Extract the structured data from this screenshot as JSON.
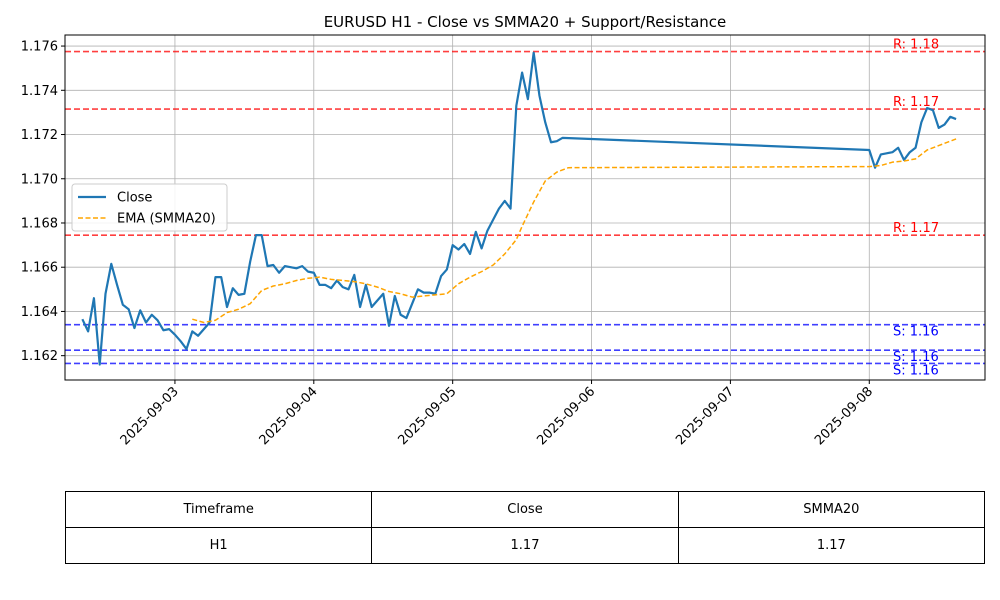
{
  "chart_data": {
    "type": "line",
    "title": "EURUSD H1 - Close vs SMMA20 + Support/Resistance",
    "xlabel": "",
    "ylabel": "",
    "xlim": [
      "2025-09-02 05:00",
      "2025-09-08 20:00"
    ],
    "ylim": [
      1.1609,
      1.1765
    ],
    "grid": true,
    "legend_position": "center-left",
    "x_ticks": [
      "2025-09-03",
      "2025-09-04",
      "2025-09-05",
      "2025-09-06",
      "2025-09-07",
      "2025-09-08"
    ],
    "y_ticks": [
      "1.162",
      "1.164",
      "1.166",
      "1.168",
      "1.170",
      "1.172",
      "1.174",
      "1.176"
    ],
    "series": [
      {
        "name": "Close",
        "color": "#1f77b4",
        "style": "solid",
        "points": [
          [
            "2025-09-02 08:00",
            1.16365
          ],
          [
            "2025-09-02 09:00",
            1.1631
          ],
          [
            "2025-09-02 10:00",
            1.1646
          ],
          [
            "2025-09-02 11:00",
            1.1616
          ],
          [
            "2025-09-02 12:00",
            1.1648
          ],
          [
            "2025-09-02 13:00",
            1.16615
          ],
          [
            "2025-09-02 14:00",
            1.1652
          ],
          [
            "2025-09-02 15:00",
            1.1643
          ],
          [
            "2025-09-02 16:00",
            1.1641
          ],
          [
            "2025-09-02 17:00",
            1.16325
          ],
          [
            "2025-09-02 18:00",
            1.16405
          ],
          [
            "2025-09-02 19:00",
            1.1635
          ],
          [
            "2025-09-02 20:00",
            1.16385
          ],
          [
            "2025-09-02 21:00",
            1.1636
          ],
          [
            "2025-09-02 22:00",
            1.16315
          ],
          [
            "2025-09-02 23:00",
            1.1632
          ],
          [
            "2025-09-03 00:00",
            1.16295
          ],
          [
            "2025-09-03 01:00",
            1.16265
          ],
          [
            "2025-09-03 02:00",
            1.1623
          ],
          [
            "2025-09-03 03:00",
            1.1631
          ],
          [
            "2025-09-03 04:00",
            1.1629
          ],
          [
            "2025-09-03 05:00",
            1.1632
          ],
          [
            "2025-09-03 06:00",
            1.1635
          ],
          [
            "2025-09-03 07:00",
            1.16555
          ],
          [
            "2025-09-03 08:00",
            1.16555
          ],
          [
            "2025-09-03 09:00",
            1.1642
          ],
          [
            "2025-09-03 10:00",
            1.16505
          ],
          [
            "2025-09-03 11:00",
            1.16475
          ],
          [
            "2025-09-03 12:00",
            1.1648
          ],
          [
            "2025-09-03 13:00",
            1.16625
          ],
          [
            "2025-09-03 14:00",
            1.16745
          ],
          [
            "2025-09-03 15:00",
            1.16745
          ],
          [
            "2025-09-03 16:00",
            1.16605
          ],
          [
            "2025-09-03 17:00",
            1.1661
          ],
          [
            "2025-09-03 18:00",
            1.16575
          ],
          [
            "2025-09-03 19:00",
            1.16605
          ],
          [
            "2025-09-03 20:00",
            1.166
          ],
          [
            "2025-09-03 21:00",
            1.16595
          ],
          [
            "2025-09-03 22:00",
            1.16605
          ],
          [
            "2025-09-03 23:00",
            1.1658
          ],
          [
            "2025-09-04 00:00",
            1.16575
          ],
          [
            "2025-09-04 01:00",
            1.1652
          ],
          [
            "2025-09-04 02:00",
            1.1652
          ],
          [
            "2025-09-04 03:00",
            1.16505
          ],
          [
            "2025-09-04 04:00",
            1.1654
          ],
          [
            "2025-09-04 05:00",
            1.1651
          ],
          [
            "2025-09-04 06:00",
            1.165
          ],
          [
            "2025-09-04 07:00",
            1.16565
          ],
          [
            "2025-09-04 08:00",
            1.1642
          ],
          [
            "2025-09-04 09:00",
            1.1652
          ],
          [
            "2025-09-04 10:00",
            1.1642
          ],
          [
            "2025-09-04 11:00",
            1.1645
          ],
          [
            "2025-09-04 12:00",
            1.1648
          ],
          [
            "2025-09-04 13:00",
            1.16335
          ],
          [
            "2025-09-04 14:00",
            1.1647
          ],
          [
            "2025-09-04 15:00",
            1.16385
          ],
          [
            "2025-09-04 16:00",
            1.1637
          ],
          [
            "2025-09-04 17:00",
            1.16435
          ],
          [
            "2025-09-04 18:00",
            1.165
          ],
          [
            "2025-09-04 19:00",
            1.16485
          ],
          [
            "2025-09-04 20:00",
            1.16485
          ],
          [
            "2025-09-04 21:00",
            1.1648
          ],
          [
            "2025-09-04 22:00",
            1.1656
          ],
          [
            "2025-09-04 23:00",
            1.1659
          ],
          [
            "2025-09-05 00:00",
            1.167
          ],
          [
            "2025-09-05 01:00",
            1.1668
          ],
          [
            "2025-09-05 02:00",
            1.16705
          ],
          [
            "2025-09-05 03:00",
            1.1666
          ],
          [
            "2025-09-05 04:00",
            1.1676
          ],
          [
            "2025-09-05 05:00",
            1.16685
          ],
          [
            "2025-09-05 06:00",
            1.16765
          ],
          [
            "2025-09-05 07:00",
            1.16815
          ],
          [
            "2025-09-05 08:00",
            1.16865
          ],
          [
            "2025-09-05 09:00",
            1.169
          ],
          [
            "2025-09-05 10:00",
            1.16865
          ],
          [
            "2025-09-05 11:00",
            1.1733
          ],
          [
            "2025-09-05 12:00",
            1.1748
          ],
          [
            "2025-09-05 13:00",
            1.1736
          ],
          [
            "2025-09-05 14:00",
            1.1757
          ],
          [
            "2025-09-05 15:00",
            1.17375
          ],
          [
            "2025-09-05 16:00",
            1.17255
          ],
          [
            "2025-09-05 17:00",
            1.17165
          ],
          [
            "2025-09-05 18:00",
            1.1717
          ],
          [
            "2025-09-05 19:00",
            1.17185
          ],
          [
            "2025-09-08 00:00",
            1.1713
          ],
          [
            "2025-09-08 01:00",
            1.1705
          ],
          [
            "2025-09-08 02:00",
            1.1711
          ],
          [
            "2025-09-08 03:00",
            1.17115
          ],
          [
            "2025-09-08 04:00",
            1.1712
          ],
          [
            "2025-09-08 05:00",
            1.1714
          ],
          [
            "2025-09-08 06:00",
            1.17085
          ],
          [
            "2025-09-08 07:00",
            1.1712
          ],
          [
            "2025-09-08 08:00",
            1.1714
          ],
          [
            "2025-09-08 09:00",
            1.17255
          ],
          [
            "2025-09-08 10:00",
            1.1732
          ],
          [
            "2025-09-08 11:00",
            1.1731
          ],
          [
            "2025-09-08 12:00",
            1.1723
          ],
          [
            "2025-09-08 13:00",
            1.17245
          ],
          [
            "2025-09-08 14:00",
            1.1728
          ],
          [
            "2025-09-08 15:00",
            1.1727
          ]
        ]
      },
      {
        "name": "EMA (SMMA20)",
        "color": "#ffa500",
        "style": "dashed",
        "points": [
          [
            "2025-09-03 03:00",
            1.16365
          ],
          [
            "2025-09-03 05:00",
            1.1635
          ],
          [
            "2025-09-03 07:00",
            1.1636
          ],
          [
            "2025-09-03 09:00",
            1.16395
          ],
          [
            "2025-09-03 11:00",
            1.1641
          ],
          [
            "2025-09-03 13:00",
            1.16435
          ],
          [
            "2025-09-03 15:00",
            1.16495
          ],
          [
            "2025-09-03 17:00",
            1.16515
          ],
          [
            "2025-09-03 19:00",
            1.16525
          ],
          [
            "2025-09-03 21:00",
            1.1654
          ],
          [
            "2025-09-03 23:00",
            1.1655
          ],
          [
            "2025-09-04 01:00",
            1.16555
          ],
          [
            "2025-09-04 03:00",
            1.16545
          ],
          [
            "2025-09-04 05:00",
            1.1654
          ],
          [
            "2025-09-04 07:00",
            1.16535
          ],
          [
            "2025-09-04 09:00",
            1.16525
          ],
          [
            "2025-09-04 11:00",
            1.1651
          ],
          [
            "2025-09-04 13:00",
            1.1649
          ],
          [
            "2025-09-04 15:00",
            1.1648
          ],
          [
            "2025-09-04 17:00",
            1.16465
          ],
          [
            "2025-09-04 19:00",
            1.1647
          ],
          [
            "2025-09-04 21:00",
            1.16475
          ],
          [
            "2025-09-04 23:00",
            1.1648
          ],
          [
            "2025-09-05 01:00",
            1.16525
          ],
          [
            "2025-09-05 03:00",
            1.16555
          ],
          [
            "2025-09-05 05:00",
            1.1658
          ],
          [
            "2025-09-05 07:00",
            1.1661
          ],
          [
            "2025-09-05 09:00",
            1.1666
          ],
          [
            "2025-09-05 11:00",
            1.16725
          ],
          [
            "2025-09-05 12:00",
            1.16785
          ],
          [
            "2025-09-05 14:00",
            1.16895
          ],
          [
            "2025-09-05 16:00",
            1.1699
          ],
          [
            "2025-09-05 18:00",
            1.1703
          ],
          [
            "2025-09-05 20:00",
            1.1705
          ],
          [
            "2025-09-08 00:00",
            1.17055
          ],
          [
            "2025-09-08 02:00",
            1.1706
          ],
          [
            "2025-09-08 04:00",
            1.17075
          ],
          [
            "2025-09-08 06:00",
            1.1708
          ],
          [
            "2025-09-08 08:00",
            1.1709
          ],
          [
            "2025-09-08 10:00",
            1.1713
          ],
          [
            "2025-09-08 12:00",
            1.1715
          ],
          [
            "2025-09-08 14:00",
            1.1717
          ],
          [
            "2025-09-08 15:00",
            1.1718
          ]
        ]
      }
    ],
    "levels": [
      {
        "kind": "resistance",
        "value": 1.17575,
        "label": "R: 1.18",
        "color": "#ff0000"
      },
      {
        "kind": "resistance",
        "value": 1.17315,
        "label": "R: 1.17",
        "color": "#ff0000"
      },
      {
        "kind": "resistance",
        "value": 1.16745,
        "label": "R: 1.17",
        "color": "#ff0000"
      },
      {
        "kind": "support",
        "value": 1.1634,
        "label": "S: 1.16",
        "color": "#0000ff"
      },
      {
        "kind": "support",
        "value": 1.16225,
        "label": "S: 1.16",
        "color": "#0000ff"
      },
      {
        "kind": "support",
        "value": 1.16165,
        "label": "S: 1.16",
        "color": "#0000ff"
      }
    ]
  },
  "table": {
    "headers": [
      "Timeframe",
      "Close",
      "SMMA20"
    ],
    "rows": [
      [
        "H1",
        "1.17",
        "1.17"
      ]
    ]
  }
}
